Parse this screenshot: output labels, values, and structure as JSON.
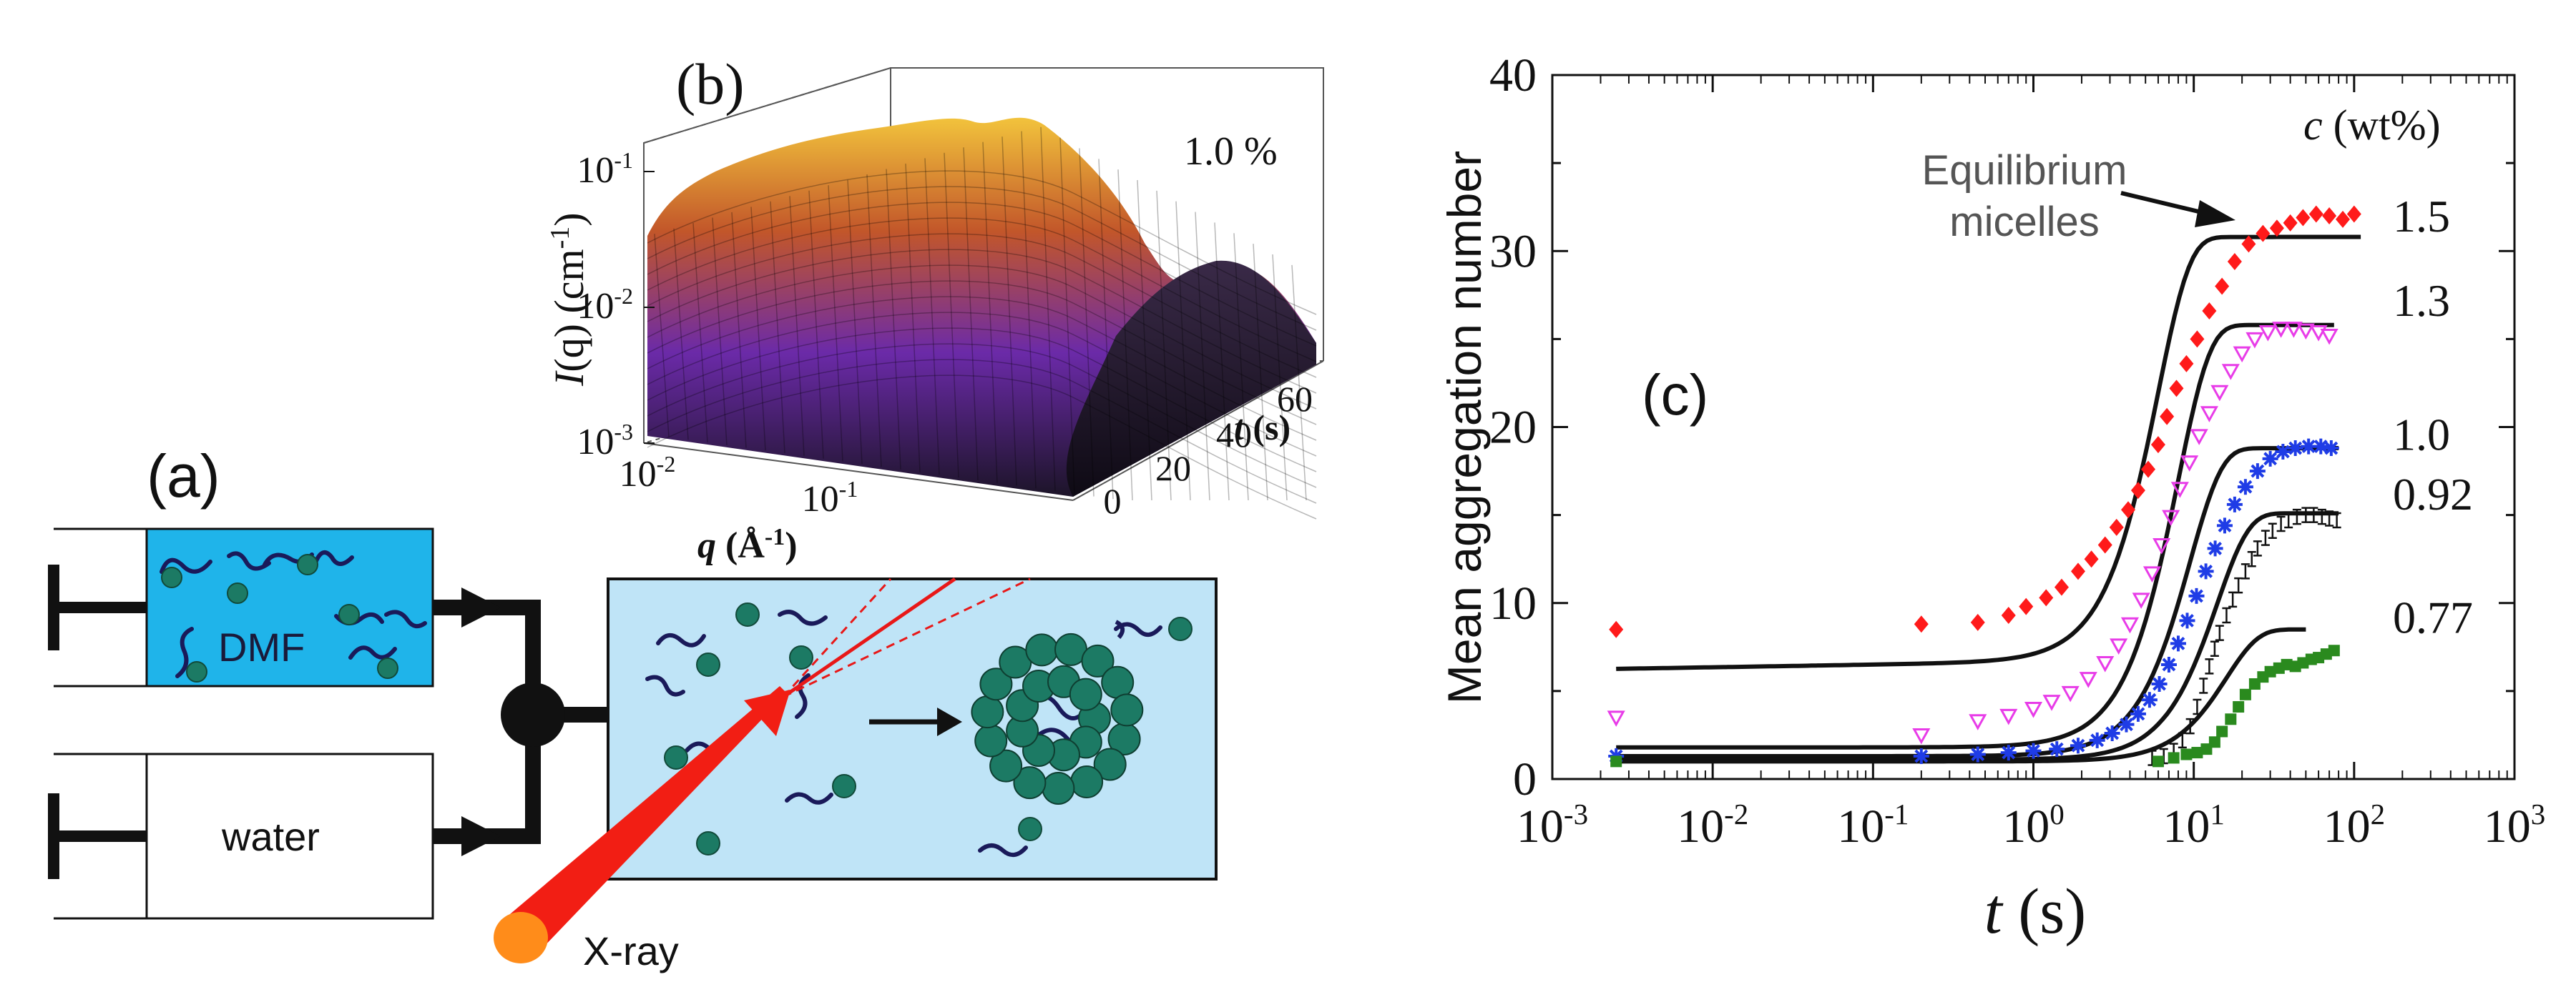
{
  "panel_a": {
    "label": "(a)",
    "syringe_top_label": "DMF",
    "syringe_bottom_label": "water",
    "xray_label": "X-ray"
  },
  "panel_b": {
    "label": "(b)",
    "concentration": "1.0 %",
    "y_axis": {
      "italic": "I",
      "paren": "(q)",
      "unit": " (cm",
      "sup": "-1",
      "close": ")"
    },
    "y_ticks": [
      {
        "base": "10",
        "exp": "-1"
      },
      {
        "base": "10",
        "exp": "-2"
      },
      {
        "base": "10",
        "exp": "-3"
      }
    ],
    "q_ticks": [
      {
        "base": "10",
        "exp": "-2"
      },
      {
        "base": "10",
        "exp": "-1"
      }
    ],
    "q_label": {
      "italic": "q",
      "rest": " (Å",
      "sup": "-1",
      "close": ")"
    },
    "t_ticks": [
      "0",
      "20",
      "40",
      "60"
    ],
    "t_label": {
      "italic": "t",
      "rest": " (s)"
    },
    "colors": {
      "peak": "#f2c33c",
      "mid": "#c2562a",
      "low": "#6b2aa8",
      "base": "#1c1428"
    }
  },
  "chart_data": {
    "type": "scatter",
    "panel_label": "(c)",
    "title": "",
    "xlabel_italic": "t",
    "xlabel_rest": " (s)",
    "ylabel": "Mean aggregation number",
    "xscale": "log",
    "xlim": [
      0.001,
      1000
    ],
    "ylim": [
      0,
      40
    ],
    "y_ticks": [
      "0",
      "10",
      "20",
      "30",
      "40"
    ],
    "x_ticks": [
      {
        "base": "10",
        "exp": "-3"
      },
      {
        "base": "10",
        "exp": "-2"
      },
      {
        "base": "10",
        "exp": "-1"
      },
      {
        "base": "10",
        "exp": "0"
      },
      {
        "base": "10",
        "exp": "1"
      },
      {
        "base": "10",
        "exp": "2"
      },
      {
        "base": "10",
        "exp": "3"
      }
    ],
    "legend_title_italic": "c",
    "legend_title_rest": " (wt%)",
    "annotation_line1": "Equilibrium",
    "annotation_line2": "micelles",
    "series": [
      {
        "name": "1.5",
        "color": "#ff1a1a",
        "marker": "diamond",
        "fit_low": 6.2,
        "fit_high": 30.8,
        "tau": 6.0,
        "fit_end": 110,
        "x": [
          0.0025,
          0.2,
          0.45,
          0.7,
          0.9,
          1.2,
          1.5,
          1.9,
          2.3,
          2.8,
          3.3,
          3.9,
          4.5,
          5.2,
          6.0,
          6.8,
          7.8,
          9.0,
          10.5,
          12.5,
          15,
          18,
          22,
          27,
          33,
          40,
          48,
          58,
          70,
          85,
          100
        ],
        "y": [
          8.5,
          8.8,
          8.9,
          9.3,
          9.8,
          10.3,
          10.9,
          11.8,
          12.5,
          13.3,
          14.3,
          15.3,
          16.4,
          17.6,
          19.0,
          20.6,
          22.2,
          23.6,
          25.0,
          26.6,
          28.0,
          29.4,
          30.4,
          31.0,
          31.3,
          31.6,
          31.9,
          32.1,
          32.0,
          31.8,
          32.1
        ]
      },
      {
        "name": "1.3",
        "color": "#e83ce8",
        "marker": "triangle-down",
        "fit_low": 1.8,
        "fit_high": 25.8,
        "tau": 8.0,
        "fit_end": 75,
        "x": [
          0.0025,
          0.2,
          0.45,
          0.7,
          1.0,
          1.3,
          1.7,
          2.2,
          2.8,
          3.4,
          4.0,
          4.7,
          5.5,
          6.3,
          7.2,
          8.2,
          9.4,
          10.8,
          12.5,
          14.5,
          17,
          20,
          24,
          29,
          35,
          42,
          50,
          60,
          70
        ],
        "y": [
          3.5,
          2.5,
          3.3,
          3.6,
          4.0,
          4.4,
          4.9,
          5.7,
          6.6,
          7.6,
          8.8,
          10.2,
          11.7,
          13.3,
          14.9,
          16.5,
          18.0,
          19.5,
          20.8,
          22.0,
          23.2,
          24.2,
          25.0,
          25.4,
          25.6,
          25.6,
          25.5,
          25.4,
          25.2
        ]
      },
      {
        "name": "1.0",
        "color": "#1f3ce6",
        "marker": "star",
        "fit_low": 1.3,
        "fit_high": 18.8,
        "tau": 9.5,
        "fit_end": 80,
        "x": [
          0.0025,
          0.2,
          0.45,
          0.7,
          1.0,
          1.4,
          1.9,
          2.5,
          3.1,
          3.8,
          4.5,
          5.3,
          6.1,
          7.0,
          8.0,
          9.1,
          10.4,
          11.9,
          13.6,
          15.6,
          18,
          21,
          25,
          30,
          36,
          43,
          52,
          62,
          72
        ],
        "y": [
          1.3,
          1.3,
          1.4,
          1.5,
          1.6,
          1.7,
          1.9,
          2.2,
          2.6,
          3.1,
          3.7,
          4.5,
          5.4,
          6.5,
          7.7,
          9.0,
          10.4,
          11.8,
          13.1,
          14.4,
          15.6,
          16.6,
          17.5,
          18.2,
          18.6,
          18.8,
          18.9,
          18.9,
          18.8
        ]
      },
      {
        "name": "0.92",
        "color": "#111111",
        "marker": "errorbar",
        "fit_low": 1.1,
        "fit_high": 15.1,
        "tau": 14.0,
        "fit_end": 80,
        "x": [
          5.5,
          6.5,
          7.5,
          8.5,
          9.5,
          10.5,
          11.5,
          12.5,
          13.5,
          14.5,
          16,
          17.5,
          19,
          21,
          23,
          25,
          28,
          31,
          35,
          39,
          44,
          50,
          56,
          63,
          70,
          78
        ],
        "y": [
          1.2,
          1.3,
          1.6,
          2.2,
          3.0,
          4.1,
          5.3,
          6.4,
          7.4,
          8.3,
          9.3,
          10.2,
          11.0,
          11.8,
          12.5,
          13.1,
          13.7,
          14.1,
          14.5,
          14.7,
          14.9,
          15.0,
          15.0,
          14.9,
          14.8,
          14.7
        ]
      },
      {
        "name": "0.77",
        "color": "#2a8a1e",
        "marker": "square",
        "fit_low": 1.0,
        "fit_high": 8.5,
        "tau": 16.0,
        "fit_end": 50,
        "x": [
          0.0025,
          6.0,
          7.5,
          9.0,
          10.5,
          12.0,
          13.5,
          15.0,
          17,
          19,
          21,
          24,
          27,
          30,
          34,
          38,
          43,
          48,
          54,
          60,
          67,
          75
        ],
        "y": [
          1.0,
          1.0,
          1.2,
          1.4,
          1.5,
          1.7,
          2.1,
          2.7,
          3.4,
          4.1,
          4.8,
          5.4,
          5.8,
          6.1,
          6.3,
          6.5,
          6.4,
          6.6,
          6.8,
          6.9,
          7.1,
          7.3
        ]
      }
    ]
  }
}
